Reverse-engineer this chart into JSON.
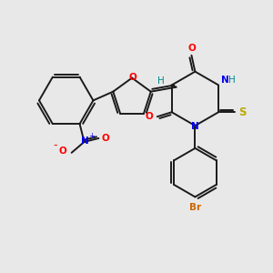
{
  "bg_color": "#e8e8e8",
  "bond_color": "#1a1a1a",
  "bond_lw": 1.4,
  "atom_colors": {
    "O": "#ff0000",
    "N": "#0000ee",
    "S": "#bbaa00",
    "Br": "#cc6600",
    "H_teal": "#008888",
    "NO2_N": "#0000ee",
    "NO2_O": "#ff0000"
  },
  "figsize": [
    3.0,
    3.0
  ],
  "dpi": 100
}
